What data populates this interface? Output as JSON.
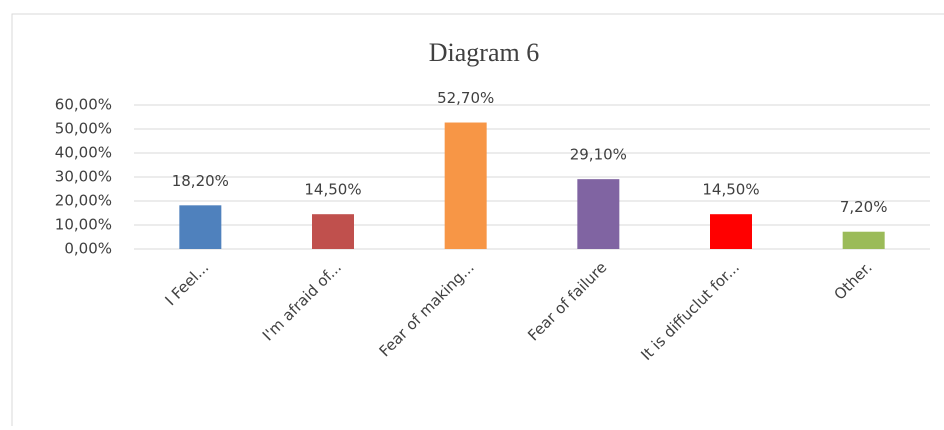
{
  "chart_data": {
    "type": "bar",
    "title": "Diagram 6",
    "categories": [
      "I Feel...",
      "I'm afraid of...",
      "Fear of making...",
      "Fear of failure",
      "It is diffuclut for...",
      "Other."
    ],
    "values": [
      18.2,
      14.5,
      52.7,
      29.1,
      14.5,
      7.2
    ],
    "value_labels": [
      "18,20%",
      "14,50%",
      "52,70%",
      "29,10%",
      "14,50%",
      "7,20%"
    ],
    "colors": [
      "#4f81bd",
      "#c0504d",
      "#f79646",
      "#8064a2",
      "#ff0000",
      "#9bbb59"
    ],
    "ylim": [
      0,
      60
    ],
    "yticks": [
      {
        "value": 0,
        "label": "0,00%"
      },
      {
        "value": 10,
        "label": "10,00%"
      },
      {
        "value": 20,
        "label": "20,00%"
      },
      {
        "value": 30,
        "label": "30,00%"
      },
      {
        "value": 40,
        "label": "40,00%"
      },
      {
        "value": 50,
        "label": "50,00%"
      },
      {
        "value": 60,
        "label": "60,00%"
      }
    ],
    "grid": true
  }
}
